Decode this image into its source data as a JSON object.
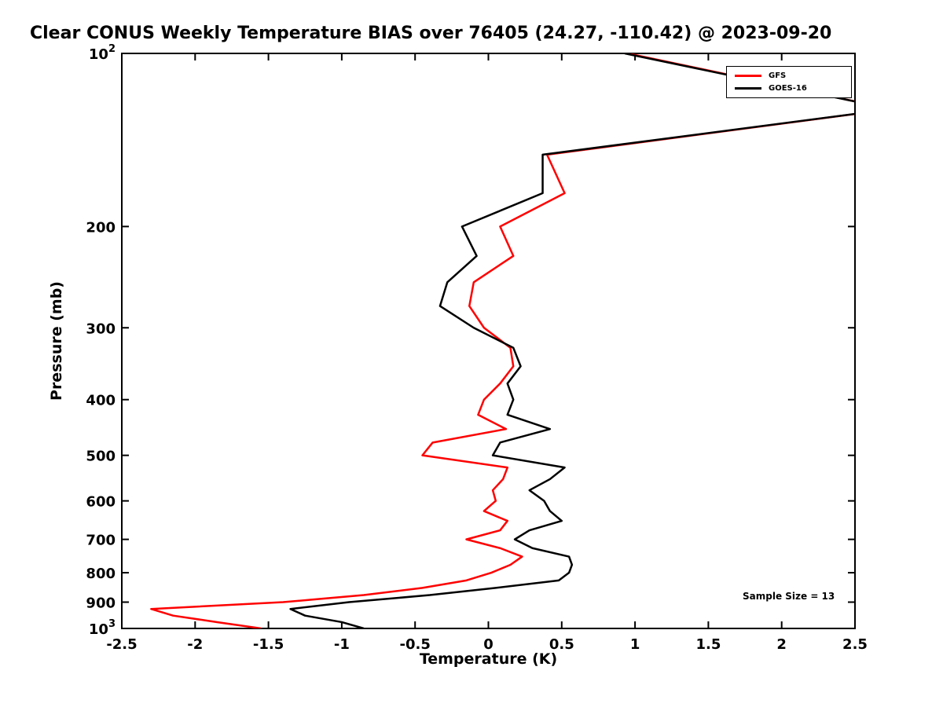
{
  "chart_data": {
    "type": "line",
    "title": "Clear CONUS Weekly Temperature BIAS over 76405 (24.27, -110.42) @ 2023-09-20",
    "xlabel": "Temperature (K)",
    "ylabel": "Pressure (mb)",
    "xlim": [
      -2.5,
      2.5
    ],
    "y_scale": "log10-inverted",
    "ylim_pressure": [
      100,
      1000
    ],
    "grid": false,
    "legend_position": "top-right",
    "annotation": "Sample Size = 13",
    "xticks": [
      -2.5,
      -2,
      -1.5,
      -1,
      -0.5,
      0,
      0.5,
      1,
      1.5,
      2,
      2.5
    ],
    "xtick_labels": [
      "-2.5",
      "-2",
      "-1.5",
      "-1",
      "-0.5",
      "0",
      "0.5",
      "1",
      "1.5",
      "2",
      "2.5"
    ],
    "yticks": [
      {
        "pressure": 100,
        "base": "10",
        "exp": "2"
      },
      {
        "pressure": 200,
        "label": "200"
      },
      {
        "pressure": 300,
        "label": "300"
      },
      {
        "pressure": 400,
        "label": "400"
      },
      {
        "pressure": 500,
        "label": "500"
      },
      {
        "pressure": 600,
        "label": "600"
      },
      {
        "pressure": 700,
        "label": "700"
      },
      {
        "pressure": 800,
        "label": "800"
      },
      {
        "pressure": 900,
        "label": "900"
      },
      {
        "pressure": 1000,
        "base": "10",
        "exp": "3"
      }
    ],
    "pressure_levels": [
      100,
      125,
      150,
      175,
      200,
      225,
      250,
      275,
      300,
      325,
      350,
      375,
      400,
      425,
      450,
      475,
      500,
      525,
      550,
      575,
      600,
      625,
      650,
      675,
      700,
      725,
      750,
      775,
      800,
      825,
      850,
      875,
      900,
      925,
      950,
      975,
      1000
    ],
    "series": [
      {
        "name": "GFS",
        "color": "#ff0000",
        "values": [
          0.95,
          2.75,
          0.4,
          0.52,
          0.08,
          0.17,
          -0.1,
          -0.13,
          -0.03,
          0.15,
          0.17,
          0.08,
          -0.03,
          -0.07,
          0.12,
          -0.38,
          -0.45,
          0.13,
          0.1,
          0.03,
          0.05,
          -0.03,
          0.13,
          0.08,
          -0.15,
          0.08,
          0.23,
          0.15,
          0.02,
          -0.15,
          -0.45,
          -0.85,
          -1.4,
          -2.3,
          -2.15,
          -1.85,
          -1.55
        ]
      },
      {
        "name": "GOES-16",
        "color": "#000000",
        "values": [
          0.93,
          2.75,
          0.37,
          0.37,
          -0.18,
          -0.08,
          -0.28,
          -0.33,
          -0.1,
          0.17,
          0.22,
          0.13,
          0.17,
          0.13,
          0.42,
          0.08,
          0.03,
          0.52,
          0.42,
          0.28,
          0.38,
          0.42,
          0.5,
          0.28,
          0.18,
          0.3,
          0.55,
          0.57,
          0.55,
          0.48,
          0.05,
          -0.4,
          -0.95,
          -1.35,
          -1.25,
          -1.0,
          -0.85
        ]
      }
    ]
  }
}
